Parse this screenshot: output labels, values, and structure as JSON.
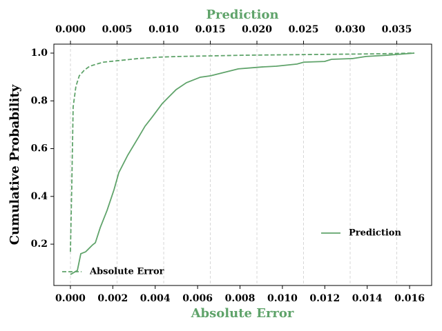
{
  "chart_data": {
    "type": "line",
    "xlabel": "Absolute Error",
    "x2label": "Prediction",
    "ylabel": "Cumulative Probability",
    "label_color": "#5fa36a",
    "xlim": [
      -0.00078,
      0.01704
    ],
    "x2lim": [
      -0.00178,
      0.03874
    ],
    "ylim": [
      0.027,
      1.0375
    ],
    "xticks": [
      {
        "value": 0,
        "label": "0.000"
      },
      {
        "value": 0.002,
        "label": "0.002"
      },
      {
        "value": 0.004,
        "label": "0.004"
      },
      {
        "value": 0.006,
        "label": "0.006"
      },
      {
        "value": 0.008,
        "label": "0.008"
      },
      {
        "value": 0.01,
        "label": "0.010"
      },
      {
        "value": 0.012,
        "label": "0.012"
      },
      {
        "value": 0.014,
        "label": "0.014"
      },
      {
        "value": 0.016,
        "label": "0.016"
      }
    ],
    "x2ticks": [
      {
        "value": 0,
        "label": "0.000"
      },
      {
        "value": 0.005,
        "label": "0.005"
      },
      {
        "value": 0.01,
        "label": "0.010"
      },
      {
        "value": 0.015,
        "label": "0.015"
      },
      {
        "value": 0.02,
        "label": "0.020"
      },
      {
        "value": 0.025,
        "label": "0.025"
      },
      {
        "value": 0.03,
        "label": "0.030"
      },
      {
        "value": 0.035,
        "label": "0.035"
      }
    ],
    "yticks": [
      0.2,
      0.4,
      0.6,
      0.8,
      {
        "value": 1.0,
        "label": "1.0"
      }
    ],
    "grid": "x2",
    "series": [
      {
        "name": "Prediction",
        "color": "#5fa36a",
        "dash": "solid",
        "axis": "x2",
        "legend": "center right",
        "x": [
          0,
          0.00074,
          0.00111,
          0.00163,
          0.00237,
          0.00267,
          0.00319,
          0.00393,
          0.00467,
          0.00519,
          0.00615,
          0.00726,
          0.008,
          0.00874,
          0.00985,
          0.01059,
          0.01133,
          0.01244,
          0.01393,
          0.01504,
          0.01615,
          0.018,
          0.02059,
          0.02207,
          0.0243,
          0.02504,
          0.02726,
          0.028,
          0.03022,
          0.0317,
          0.03393,
          0.03689
        ],
        "values": [
          0.073,
          0.09,
          0.16,
          0.168,
          0.197,
          0.206,
          0.269,
          0.342,
          0.428,
          0.5,
          0.573,
          0.645,
          0.694,
          0.731,
          0.789,
          0.818,
          0.847,
          0.876,
          0.899,
          0.905,
          0.916,
          0.934,
          0.942,
          0.945,
          0.954,
          0.962,
          0.965,
          0.974,
          0.977,
          0.986,
          0.991,
          1.0
        ]
      },
      {
        "name": "Absolute Error",
        "color": "#5fa36a",
        "dash": "dashed",
        "axis": "x",
        "legend": "lower left",
        "x": [
          0,
          6.5e-05,
          0.00013,
          0.00026,
          0.00042,
          0.00065,
          0.00091,
          0.00124,
          0.00156,
          0.00221,
          0.00319,
          0.00417,
          0.00515,
          0.00645,
          0.00808,
          0.01134,
          0.01459,
          0.01622
        ],
        "values": [
          0.168,
          0.443,
          0.775,
          0.861,
          0.905,
          0.928,
          0.945,
          0.954,
          0.962,
          0.968,
          0.977,
          0.983,
          0.986,
          0.988,
          0.991,
          0.994,
          0.997,
          1.0
        ]
      }
    ]
  }
}
